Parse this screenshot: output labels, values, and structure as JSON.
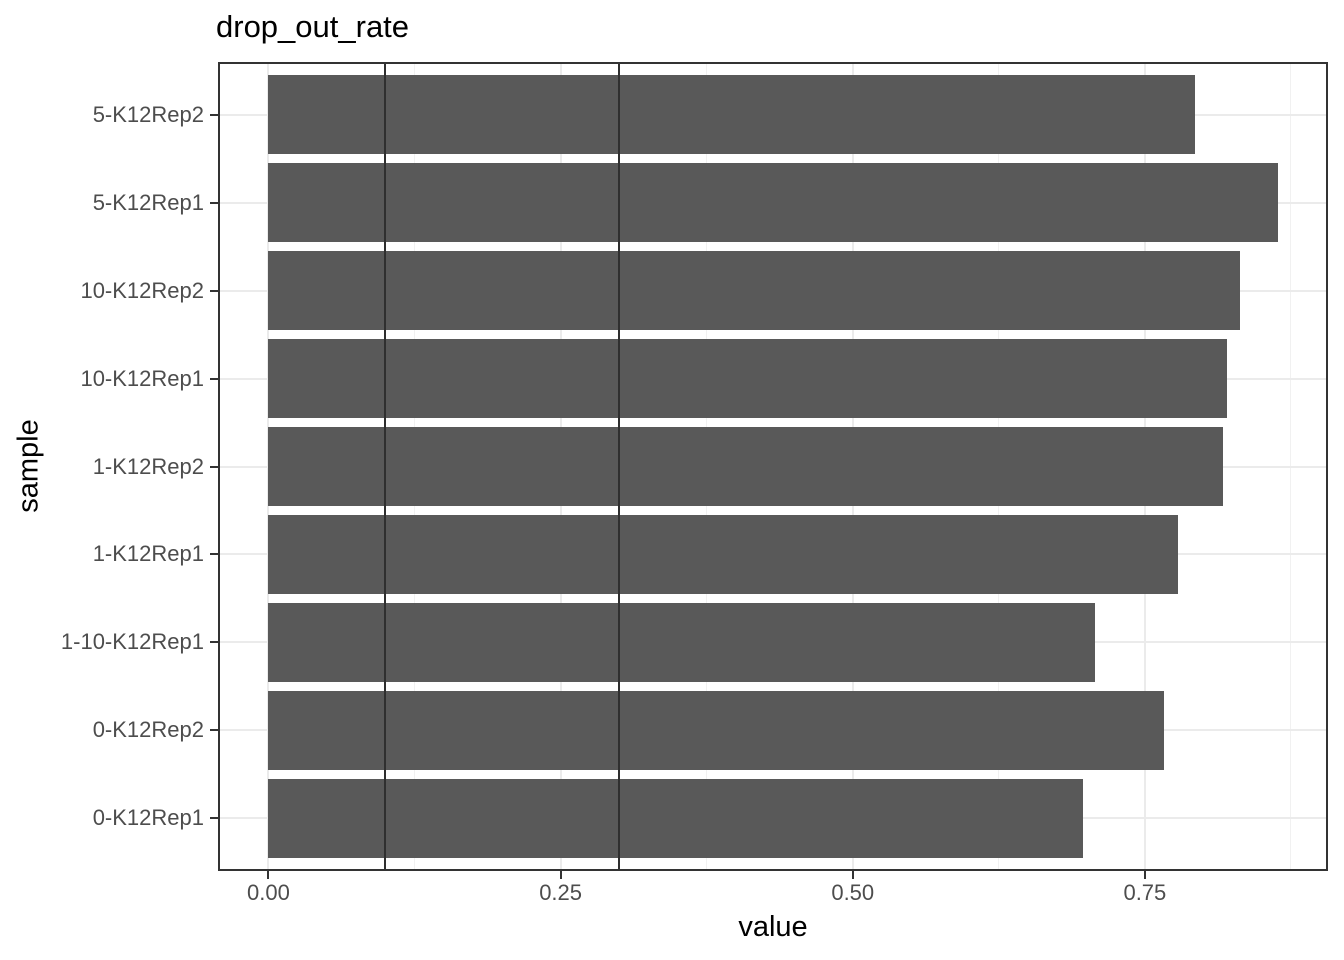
{
  "chart_data": {
    "type": "bar",
    "orientation": "horizontal",
    "title": "drop_out_rate",
    "xlabel": "value",
    "ylabel": "sample",
    "categories": [
      "5-K12Rep2",
      "5-K12Rep1",
      "10-K12Rep2",
      "10-K12Rep1",
      "1-K12Rep2",
      "1-K12Rep1",
      "1-10-K12Rep1",
      "0-K12Rep2",
      "0-K12Rep1"
    ],
    "values": [
      0.793,
      0.864,
      0.831,
      0.82,
      0.817,
      0.778,
      0.707,
      0.766,
      0.697
    ],
    "x_ticks": [
      0.0,
      0.25,
      0.5,
      0.75
    ],
    "x_tick_labels": [
      "0.00",
      "0.25",
      "0.50",
      "0.75"
    ],
    "x_minor_ticks": [
      0.125,
      0.375,
      0.625,
      0.875
    ],
    "xlim": [
      -0.0432,
      0.9067
    ],
    "reference_lines": [
      0.1,
      0.3
    ],
    "grid": true,
    "legend_position": "none",
    "colors": {
      "bar_fill": "#595959",
      "reference_line": "#2f2f2f",
      "grid_major": "#ebebeb",
      "grid_minor": "#f1f1f1",
      "panel_border": "#333333",
      "tick_label": "#4d4d4d",
      "title_text": "#000000",
      "background": "#ffffff"
    }
  }
}
